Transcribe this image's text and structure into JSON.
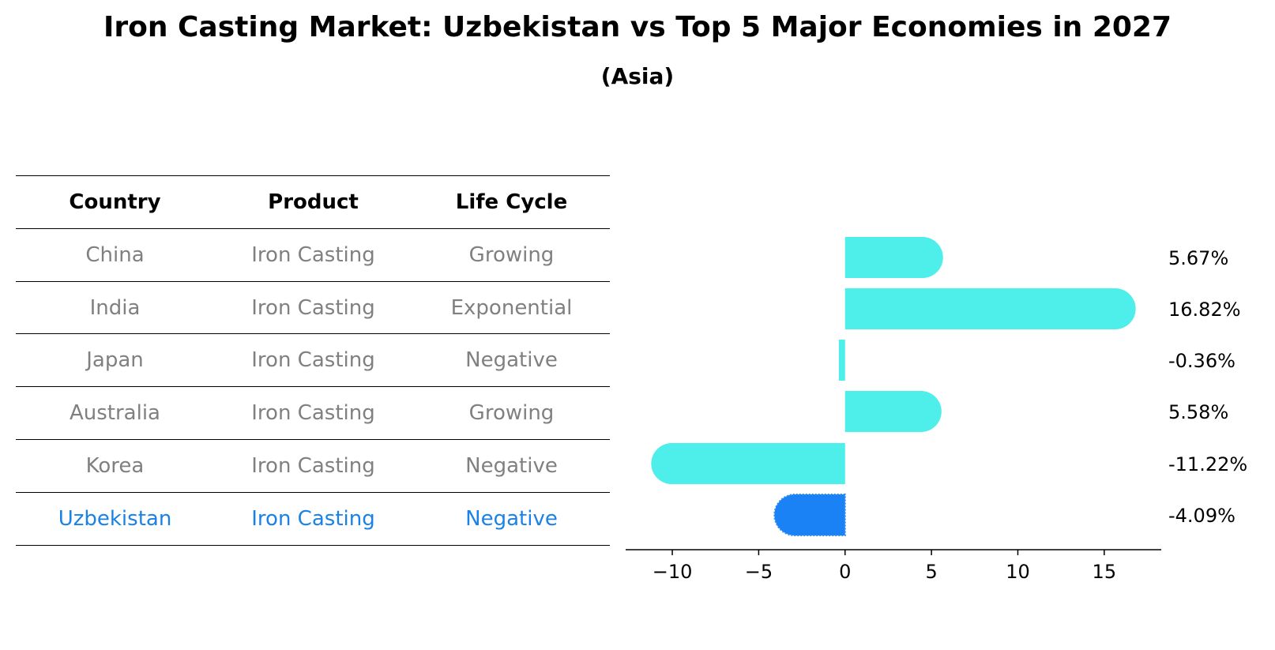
{
  "title": "Iron Casting Market: Uzbekistan vs Top 5 Major Economies in 2027",
  "subtitle": "(Asia)",
  "table": {
    "headers": [
      "Country",
      "Product",
      "Life Cycle"
    ],
    "rows": [
      [
        "China",
        "Iron Casting",
        "Growing"
      ],
      [
        "India",
        "Iron Casting",
        "Exponential"
      ],
      [
        "Japan",
        "Iron Casting",
        "Negative"
      ],
      [
        "Australia",
        "Iron Casting",
        "Growing"
      ],
      [
        "Korea",
        "Iron Casting",
        "Negative"
      ],
      [
        "Uzbekistan",
        "Iron Casting",
        "Negative"
      ]
    ],
    "highlight_row": 5
  },
  "colors": {
    "bar": "#4eeeea",
    "highlight": "#1a82f5",
    "muted_text": "#808080",
    "highlight_text": "#1a82e6"
  },
  "chart_data": {
    "type": "bar",
    "orientation": "horizontal",
    "categories": [
      "China",
      "India",
      "Japan",
      "Australia",
      "Korea",
      "Uzbekistan"
    ],
    "values": [
      5.67,
      16.82,
      -0.36,
      5.58,
      -11.22,
      -4.09
    ],
    "value_labels": [
      "5.67%",
      "16.82%",
      "-0.36%",
      "5.58%",
      "-11.22%",
      "-4.09%"
    ],
    "highlight_index": 5,
    "xlim": [
      -12.7,
      18.3
    ],
    "xticks": [
      -10,
      -5,
      0,
      5,
      10,
      15
    ],
    "xtick_labels": [
      "−10",
      "−5",
      "0",
      "5",
      "10",
      "15"
    ],
    "grid": false,
    "legend": "none"
  }
}
